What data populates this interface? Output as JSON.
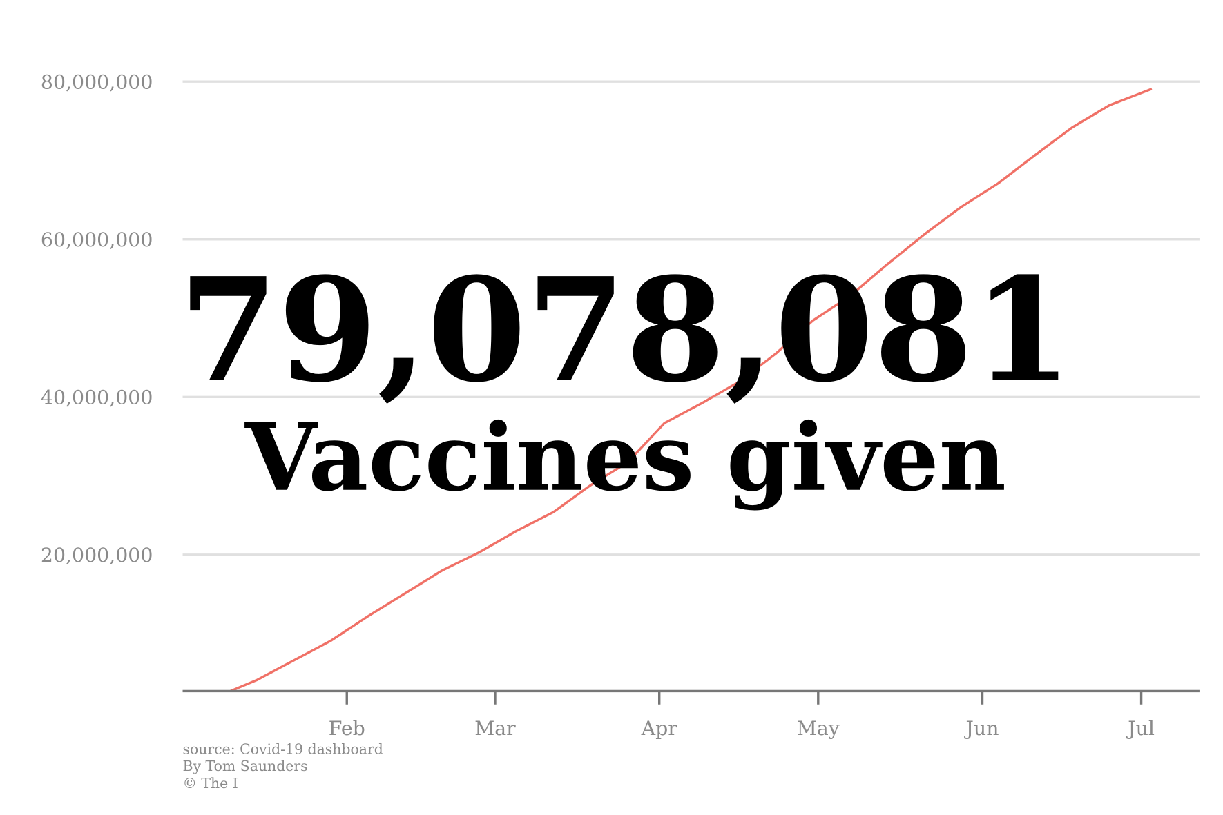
{
  "chart_data": {
    "type": "line",
    "annotations": [
      "79,078,081",
      "Vaccines given"
    ],
    "source_lines": [
      "source: Covid-19 dashboard",
      "By Tom Saunders",
      "© The I"
    ],
    "x": [
      9,
      14,
      21,
      28,
      35,
      42,
      49,
      56,
      63,
      70,
      77,
      84,
      91,
      98,
      105,
      112,
      119,
      126,
      133,
      140,
      147,
      154,
      161,
      168,
      175,
      183
    ],
    "series": [
      {
        "color": "#f07167",
        "values": [
          2700000,
          4100000,
          6600000,
          9100000,
          12200000,
          15100000,
          18000000,
          20300000,
          23000000,
          25400000,
          28800000,
          31700000,
          36700000,
          39200000,
          41900000,
          45500000,
          49700000,
          52800000,
          56800000,
          60600000,
          64100000,
          67100000,
          70700000,
          74200000,
          77000000,
          79078081
        ]
      }
    ],
    "xlim": [
      0,
      192
    ],
    "xticks": [
      {
        "value": 31,
        "label": "Feb"
      },
      {
        "value": 59,
        "label": "Mar"
      },
      {
        "value": 90,
        "label": "Apr"
      },
      {
        "value": 120,
        "label": "May"
      },
      {
        "value": 151,
        "label": "Jun"
      },
      {
        "value": 181,
        "label": "Jul"
      }
    ],
    "ylim": [
      2700000,
      80000000
    ],
    "yticks": [
      {
        "value": 20000000,
        "label": "20,000,000"
      },
      {
        "value": 40000000,
        "label": "40,000,000"
      },
      {
        "value": 60000000,
        "label": "60,000,000"
      },
      {
        "value": 80000000,
        "label": "80,000,000"
      }
    ],
    "grid": true
  }
}
